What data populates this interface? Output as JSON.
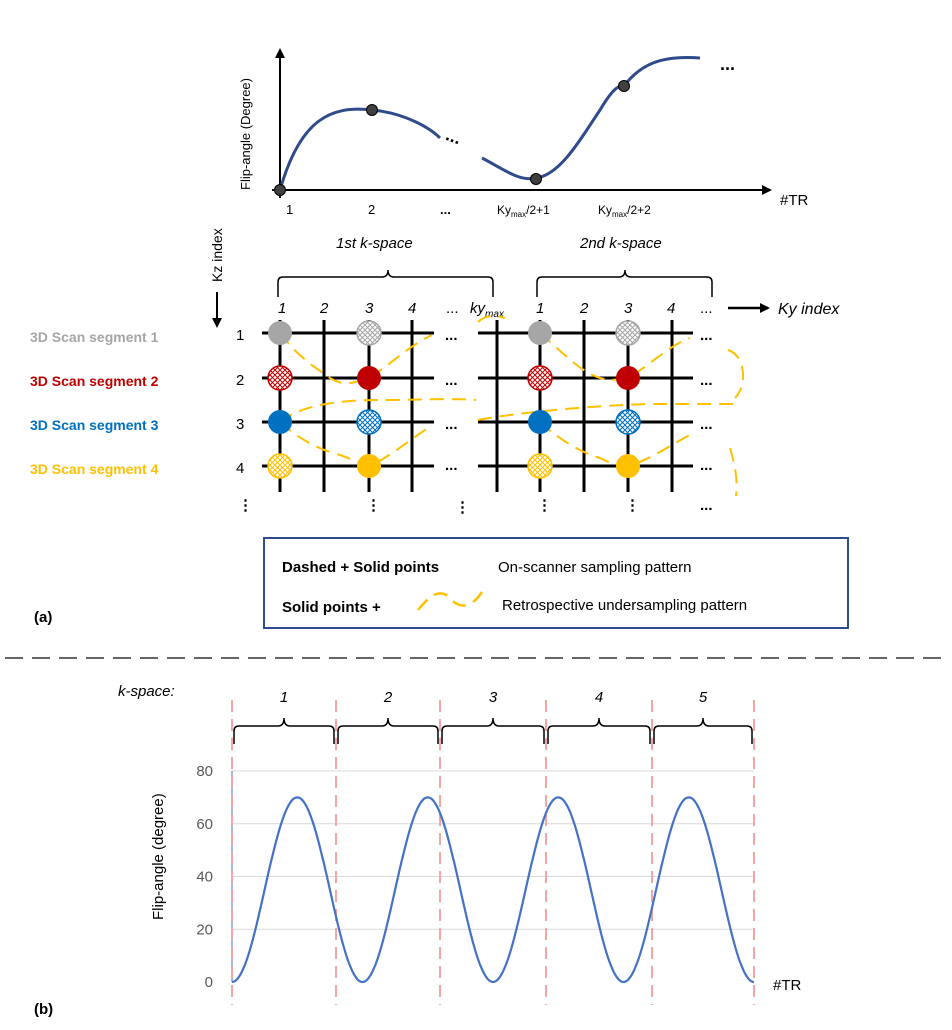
{
  "panel_a": {
    "label": "(a)",
    "top_plot": {
      "y_label": "Flip-angle (Degree)",
      "x_label": "#TR",
      "ticks": [
        "1",
        "2",
        "...",
        "Kymax/2+1",
        "Kymax/2+2"
      ],
      "tick_ky1_base": "Ky",
      "tick_ky1_sub": "max",
      "tick_ky1_rest": "/2+1",
      "tick_ky2_base": "Ky",
      "tick_ky2_sub": "max",
      "tick_ky2_rest": "/2+2",
      "ellipsis_mid": "...",
      "ellipsis_end": "...",
      "dots_mid": "...",
      "line_color": "#2f4b8a"
    },
    "kz_axis_label": "Kz index",
    "ky_axis_label": "Ky index",
    "kspace_labels": [
      "1st k-space",
      "2nd k-space"
    ],
    "ky_columns_1": [
      "1",
      "2",
      "3",
      "4",
      "...",
      "kymax"
    ],
    "ky_columns_2": [
      "1",
      "2",
      "3",
      "4",
      "..."
    ],
    "kymax_base": "ky",
    "kymax_sub": "max",
    "kz_rows": [
      "1",
      "2",
      "3",
      "4",
      "⋮"
    ],
    "segments": [
      {
        "label": "3D Scan segment 1",
        "color": "#a6a6a6"
      },
      {
        "label": "3D Scan segment 2",
        "color": "#c00000"
      },
      {
        "label": "3D Scan segment 3",
        "color": "#0070c0"
      },
      {
        "label": "3D Scan segment 4",
        "color": "#ffc000"
      }
    ],
    "grid_ellipsis": "...",
    "grid_vdots": "⋮",
    "legend": {
      "row1_key": "Dashed + Solid points",
      "row1_desc": "On-scanner sampling pattern",
      "row2_key": "Solid points +",
      "row2_desc": "Retrospective undersampling pattern",
      "border_color": "#2f4b8a",
      "dash_color": "#ffc000"
    }
  },
  "panel_b": {
    "label": "(b)",
    "kspace_prefix": "k-space:",
    "kspace_numbers": [
      "1",
      "2",
      "3",
      "4",
      "5"
    ],
    "y_label": "Flip-angle (degree)",
    "x_label": "#TR",
    "y_ticks": [
      "0",
      "20",
      "40",
      "60",
      "80"
    ],
    "line_color": "#4472c4",
    "boundary_color": "#f4a6a6"
  },
  "chart_data": {
    "type": "line",
    "title": "",
    "xlabel": "#TR",
    "ylabel": "Flip-angle (degree)",
    "ylim": [
      0,
      80
    ],
    "grid": true,
    "series": [
      {
        "name": "Flip-angle",
        "description": "4 cycles of sinusoidal flip-angle modulation, each cycle 0 to 70 to 0 degree",
        "cycles": 4,
        "min": 0,
        "max": 70
      }
    ]
  }
}
